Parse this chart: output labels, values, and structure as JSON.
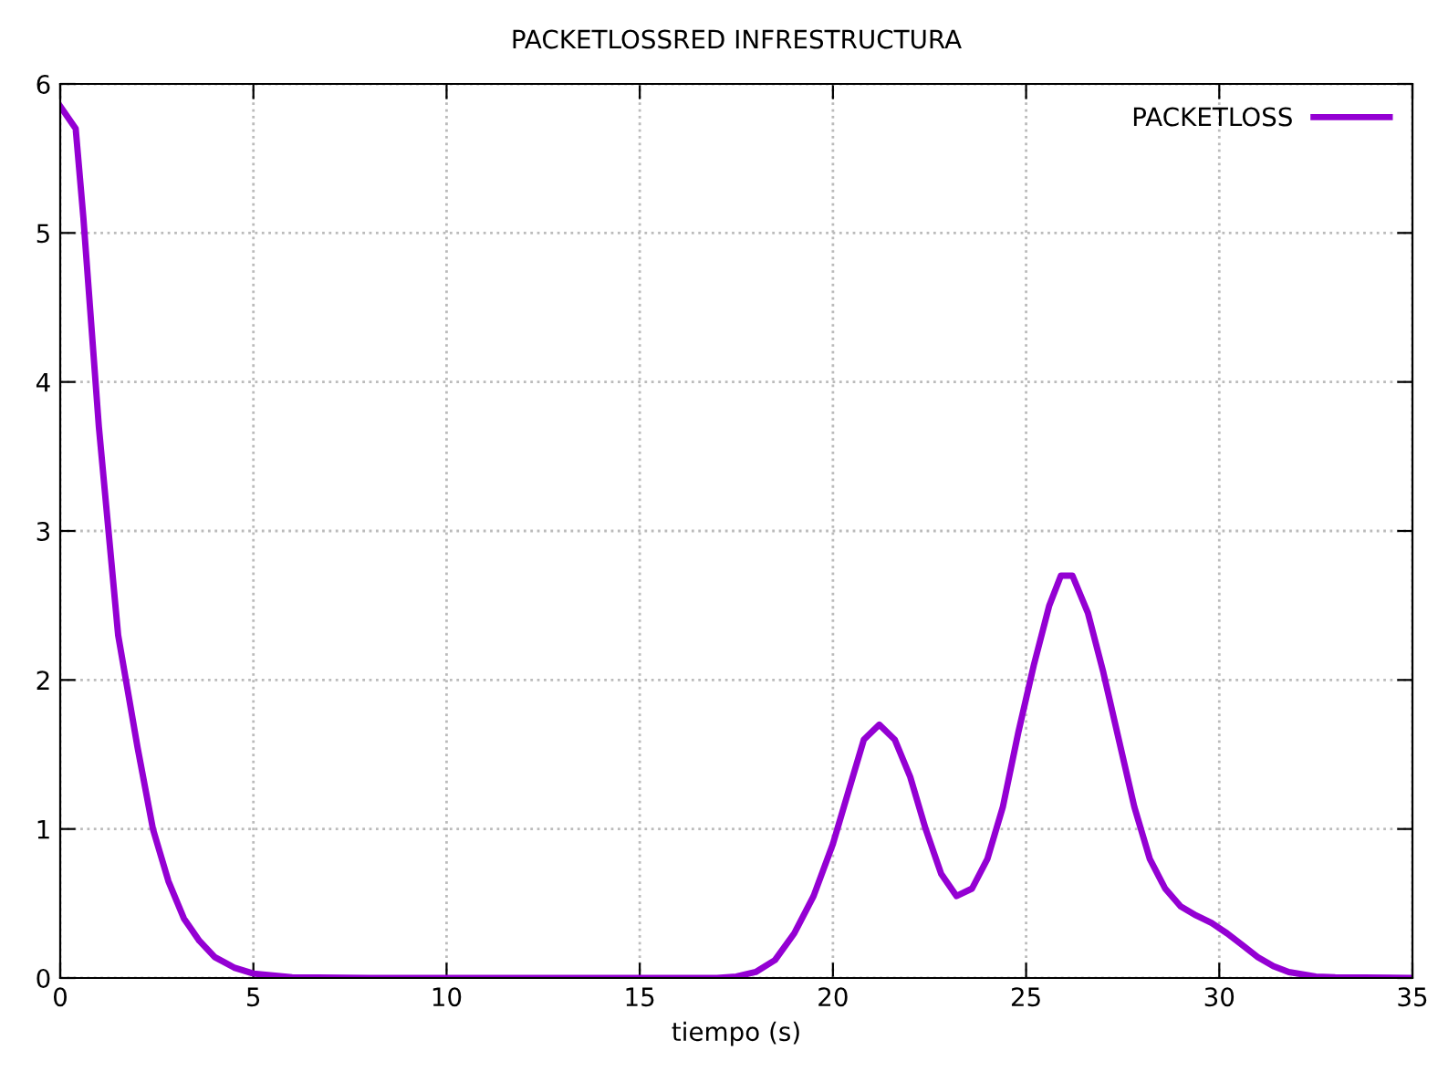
{
  "chart_data": {
    "type": "line",
    "title": "PACKETLOSSRED INFRESTRUCTURA",
    "xlabel": "tiempo (s)",
    "xlim": [
      0,
      35
    ],
    "xticks": [
      0,
      5,
      10,
      15,
      20,
      25,
      30,
      35
    ],
    "ylim": [
      0,
      6
    ],
    "yticks": [
      0,
      1,
      2,
      3,
      4,
      5,
      6
    ],
    "grid": true,
    "legend": "top right",
    "line_style": "solid",
    "marker": "none",
    "series": [
      {
        "name": "PACKETLOSS",
        "color": "#9400d3",
        "x": [
          0,
          0.4,
          0.6,
          1.0,
          1.5,
          2.0,
          2.4,
          2.8,
          3.2,
          3.6,
          4.0,
          4.5,
          5.0,
          6,
          8,
          12,
          17,
          17.5,
          18,
          18.5,
          19,
          19.5,
          20,
          20.4,
          20.8,
          21.2,
          21.6,
          22,
          22.4,
          22.8,
          23.2,
          23.6,
          24,
          24.4,
          24.8,
          25.2,
          25.6,
          25.9,
          26.2,
          26.6,
          27,
          27.4,
          27.8,
          28.2,
          28.6,
          29,
          29.4,
          29.8,
          30.2,
          30.6,
          31,
          31.4,
          31.8,
          32.5,
          33,
          35
        ],
        "values": [
          5.85,
          5.7,
          5.1,
          3.7,
          2.3,
          1.55,
          1.0,
          0.65,
          0.4,
          0.25,
          0.14,
          0.07,
          0.03,
          0.005,
          0,
          0,
          0,
          0.01,
          0.04,
          0.12,
          0.3,
          0.55,
          0.9,
          1.25,
          1.6,
          1.7,
          1.6,
          1.35,
          1.0,
          0.7,
          0.55,
          0.6,
          0.8,
          1.15,
          1.65,
          2.1,
          2.5,
          2.7,
          2.7,
          2.45,
          2.05,
          1.6,
          1.15,
          0.8,
          0.6,
          0.48,
          0.42,
          0.37,
          0.3,
          0.22,
          0.14,
          0.08,
          0.04,
          0.01,
          0.005,
          0
        ]
      }
    ]
  }
}
